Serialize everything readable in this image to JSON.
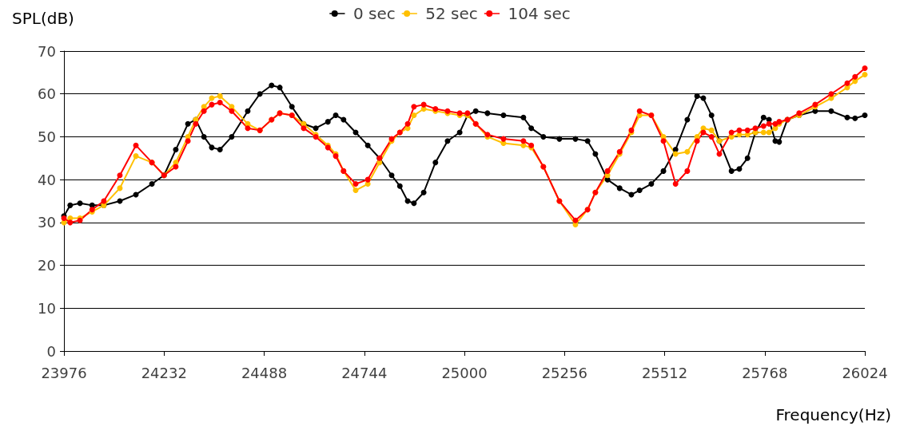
{
  "chart_data": {
    "type": "line",
    "xlabel": "Frequency(Hz)",
    "ylabel": "SPL(dB)",
    "x": [
      23976,
      23992,
      24017,
      24048,
      24078,
      24119,
      24160,
      24201,
      24232,
      24262,
      24293,
      24313,
      24334,
      24354,
      24375,
      24405,
      24446,
      24477,
      24507,
      24528,
      24559,
      24589,
      24620,
      24651,
      24671,
      24691,
      24722,
      24753,
      24783,
      24814,
      24835,
      24855,
      24871,
      24896,
      24926,
      24957,
      24988,
      25008,
      25029,
      25059,
      25100,
      25151,
      25171,
      25202,
      25243,
      25284,
      25315,
      25335,
      25366,
      25397,
      25427,
      25448,
      25478,
      25509,
      25540,
      25570,
      25595,
      25611,
      25632,
      25652,
      25683,
      25703,
      25724,
      25744,
      25765,
      25779,
      25795,
      25805,
      25826,
      25856,
      25897,
      25938,
      25979,
      25999,
      26024
    ],
    "series": [
      {
        "name": "0 sec",
        "color": "#000000",
        "values": [
          31.5,
          34,
          34.5,
          34,
          34,
          35,
          36.5,
          39,
          41,
          47,
          53,
          54,
          50,
          47.5,
          47,
          50,
          56,
          60,
          62,
          61.5,
          57,
          53,
          52,
          53.5,
          55,
          54,
          51,
          48,
          45,
          41,
          38.5,
          35,
          34.5,
          37,
          44,
          49,
          51,
          55,
          56,
          55.5,
          55,
          54.5,
          52,
          50,
          49.5,
          49.5,
          49,
          46,
          40,
          38,
          36.5,
          37.5,
          39,
          42,
          47,
          54,
          59.5,
          59,
          55,
          49,
          42,
          42.5,
          45,
          51,
          54.5,
          54,
          49,
          48.8,
          54,
          55,
          56,
          56,
          54.5,
          54.3,
          55
        ]
      },
      {
        "name": "52 sec",
        "color": "#ffc000",
        "values": [
          30,
          31,
          31,
          32.5,
          34,
          38,
          45.5,
          44,
          41,
          44,
          50,
          54,
          57,
          59,
          59.5,
          57,
          53,
          51.5,
          54,
          55.5,
          55,
          53,
          50.5,
          48,
          46,
          42,
          37.5,
          39,
          44,
          49,
          51,
          52,
          55,
          56.5,
          56,
          55.5,
          55,
          55,
          53,
          50,
          48.5,
          48,
          47.5,
          43,
          35,
          29.5,
          33,
          37,
          41,
          46,
          51,
          55,
          55,
          50,
          46,
          46.5,
          50,
          52,
          51.5,
          49,
          50,
          50.5,
          50.5,
          51,
          51,
          51,
          52,
          53,
          54,
          55,
          57,
          59,
          61.5,
          63,
          64.5
        ]
      },
      {
        "name": "104 sec",
        "color": "#ff0000",
        "values": [
          31,
          30,
          30.5,
          33,
          35,
          41,
          48,
          44,
          41,
          43,
          49,
          53,
          56,
          57.5,
          58,
          56,
          52,
          51.5,
          54,
          55.5,
          55,
          52,
          50,
          47.5,
          45.5,
          42,
          39,
          40,
          45,
          49.5,
          51,
          53,
          57,
          57.5,
          56.5,
          56,
          55.5,
          55.5,
          53,
          50.5,
          49.5,
          49,
          48,
          43,
          35,
          30.5,
          33,
          37,
          42,
          46.5,
          51.5,
          56,
          55,
          49,
          39,
          42,
          49,
          51,
          50,
          46,
          51,
          51.5,
          51.5,
          52,
          52.5,
          53,
          53,
          53.5,
          54,
          55.5,
          57.5,
          60,
          62.5,
          64,
          66
        ]
      }
    ],
    "xlim": [
      23976,
      26024
    ],
    "xticks": [
      23976,
      24232,
      24488,
      24744,
      25000,
      25256,
      25512,
      25768,
      26024
    ],
    "ylim": [
      0,
      70
    ],
    "yticks": [
      0,
      10,
      20,
      30,
      40,
      50,
      60,
      70
    ],
    "grid": "y",
    "legend": "top",
    "marker": "circle",
    "line_style": "solid"
  }
}
